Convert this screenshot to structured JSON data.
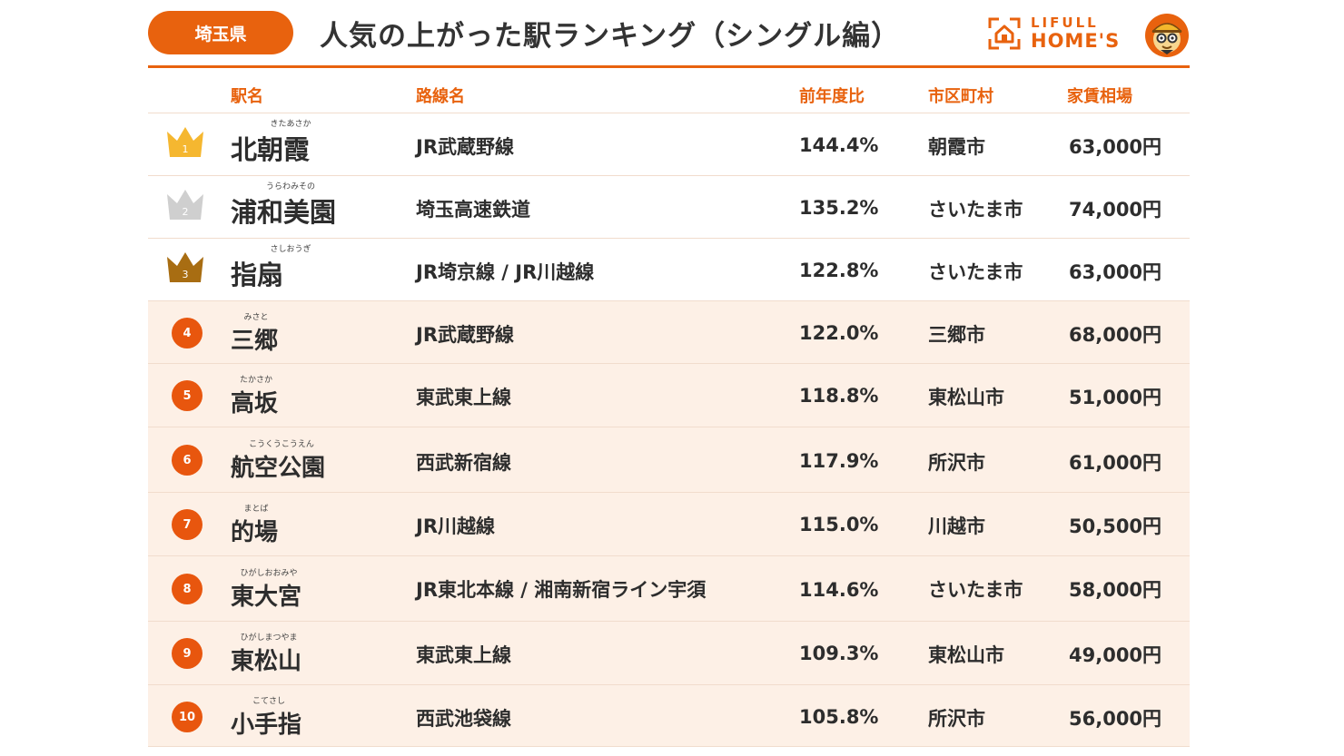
{
  "header": {
    "prefecture": "埼玉県",
    "title": "人気の上がった駅ランキング（シングル編）",
    "logo_top": "LIFULL",
    "logo_bottom": "HOME'S"
  },
  "columns": {
    "station": "駅名",
    "line": "路線名",
    "ratio": "前年度比",
    "city": "市区町村",
    "rent": "家賃相場"
  },
  "colors": {
    "accent": "#e8620e",
    "rank_circle": "#e8560e",
    "gold": "#f5b730",
    "silver": "#cfcfcf",
    "bronze": "#a86d12",
    "alt_row": "#fdf0e6"
  },
  "rows": [
    {
      "rank": "1",
      "ruby": "きたあさか",
      "station": "北朝霞",
      "line": "JR武蔵野線",
      "ratio": "144.4%",
      "city": "朝霞市",
      "rent": "63,000円",
      "icon": "gold-crown-icon"
    },
    {
      "rank": "2",
      "ruby": "うらわみその",
      "station": "浦和美園",
      "line": "埼玉高速鉄道",
      "ratio": "135.2%",
      "city": "さいたま市",
      "rent": "74,000円",
      "icon": "silver-crown-icon"
    },
    {
      "rank": "3",
      "ruby": "さしおうぎ",
      "station": "指扇",
      "line": "JR埼京線 / JR川越線",
      "ratio": "122.8%",
      "city": "さいたま市",
      "rent": "63,000円",
      "icon": "bronze-crown-icon"
    },
    {
      "rank": "4",
      "ruby": "みさと",
      "station": "三郷",
      "line": "JR武蔵野線",
      "ratio": "122.0%",
      "city": "三郷市",
      "rent": "68,000円",
      "icon": "rank-circle-icon"
    },
    {
      "rank": "5",
      "ruby": "たかさか",
      "station": "高坂",
      "line": "東武東上線",
      "ratio": "118.8%",
      "city": "東松山市",
      "rent": "51,000円",
      "icon": "rank-circle-icon"
    },
    {
      "rank": "6",
      "ruby": "こうくうこうえん",
      "station": "航空公園",
      "line": "西武新宿線",
      "ratio": "117.9%",
      "city": "所沢市",
      "rent": "61,000円",
      "icon": "rank-circle-icon"
    },
    {
      "rank": "7",
      "ruby": "まとば",
      "station": "的場",
      "line": "JR川越線",
      "ratio": "115.0%",
      "city": "川越市",
      "rent": "50,500円",
      "icon": "rank-circle-icon"
    },
    {
      "rank": "8",
      "ruby": "ひがしおおみや",
      "station": "東大宮",
      "line": "JR東北本線 / 湘南新宿ライン宇須",
      "ratio": "114.6%",
      "city": "さいたま市",
      "rent": "58,000円",
      "icon": "rank-circle-icon"
    },
    {
      "rank": "9",
      "ruby": "ひがしまつやま",
      "station": "東松山",
      "line": "東武東上線",
      "ratio": "109.3%",
      "city": "東松山市",
      "rent": "49,000円",
      "icon": "rank-circle-icon"
    },
    {
      "rank": "10",
      "ruby": "こてさし",
      "station": "小手指",
      "line": "西武池袋線",
      "ratio": "105.8%",
      "city": "所沢市",
      "rent": "56,000円",
      "icon": "rank-circle-icon"
    }
  ]
}
